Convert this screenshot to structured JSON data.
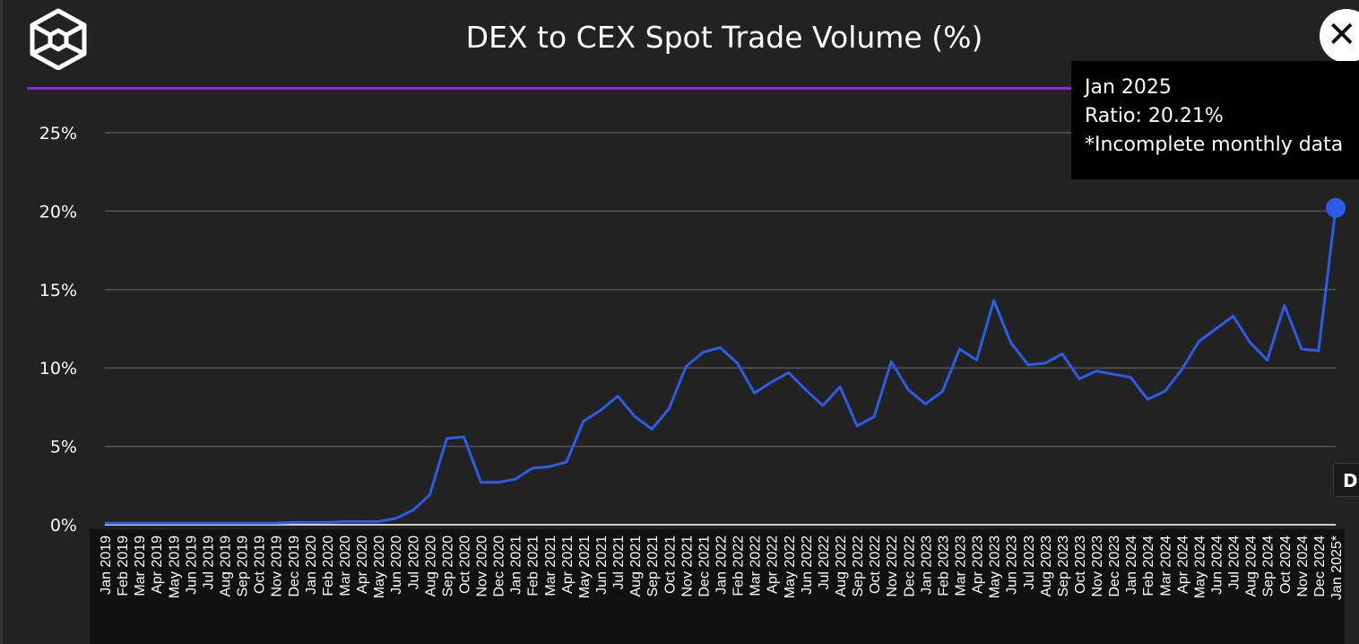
{
  "header": {
    "title": "DEX to CEX Spot Trade Volume (%)",
    "close_icon": "close-icon",
    "logo_icon": "cube-logo-icon"
  },
  "colors": {
    "background": "#222222",
    "line": "#2b5ce6",
    "accent_rule": "#8a2be2",
    "grid": "#555555",
    "tooltip_bg": "#000000"
  },
  "tooltip": {
    "date": "Jan 2025",
    "ratio": "Ratio: 20.21%",
    "note": "*Incomplete monthly data"
  },
  "side_button": {
    "label": "D"
  },
  "chart_data": {
    "type": "line",
    "title": "DEX to CEX Spot Trade Volume (%)",
    "xlabel": "",
    "ylabel": "",
    "ylim": [
      0,
      25
    ],
    "yticks": [
      "0%",
      "5%",
      "10%",
      "15%",
      "20%",
      "25%"
    ],
    "ytick_values": [
      0,
      5,
      10,
      15,
      20,
      25
    ],
    "grid": true,
    "categories": [
      "Jan 2019",
      "Feb 2019",
      "Mar 2019",
      "Apr 2019",
      "May 2019",
      "Jun 2019",
      "Jul 2019",
      "Aug 2019",
      "Sep 2019",
      "Oct 2019",
      "Nov 2019",
      "Dec 2019",
      "Jan 2020",
      "Feb 2020",
      "Mar 2020",
      "Apr 2020",
      "May 2020",
      "Jun 2020",
      "Jul 2020",
      "Aug 2020",
      "Sep 2020",
      "Oct 2020",
      "Nov 2020",
      "Dec 2020",
      "Jan 2021",
      "Feb 2021",
      "Mar 2021",
      "Apr 2021",
      "May 2021",
      "Jun 2021",
      "Jul 2021",
      "Aug 2021",
      "Sep 2021",
      "Oct 2021",
      "Nov 2021",
      "Dec 2021",
      "Jan 2022",
      "Feb 2022",
      "Mar 2022",
      "Apr 2022",
      "May 2022",
      "Jun 2022",
      "Jul 2022",
      "Aug 2022",
      "Sep 2022",
      "Oct 2022",
      "Nov 2022",
      "Dec 2022",
      "Jan 2023",
      "Feb 2023",
      "Mar 2023",
      "Apr 2023",
      "May 2023",
      "Jun 2023",
      "Jul 2023",
      "Aug 2023",
      "Sep 2023",
      "Oct 2023",
      "Nov 2023",
      "Dec 2023",
      "Jan 2024",
      "Feb 2024",
      "Mar 2024",
      "Apr 2024",
      "May 2024",
      "Jun 2024",
      "Jul 2024",
      "Aug 2024",
      "Sep 2024",
      "Oct 2024",
      "Nov 2024",
      "Dec 2024",
      "Jan 2025*"
    ],
    "series": [
      {
        "values": [
          0.1,
          0.1,
          0.1,
          0.1,
          0.1,
          0.1,
          0.1,
          0.1,
          0.1,
          0.1,
          0.1,
          0.15,
          0.15,
          0.15,
          0.2,
          0.2,
          0.2,
          0.4,
          0.9,
          1.9,
          5.5,
          5.6,
          2.7,
          2.7,
          2.9,
          3.6,
          3.7,
          4.0,
          6.6,
          7.3,
          8.2,
          6.9,
          6.1,
          7.4,
          10.1,
          11.0,
          11.3,
          10.3,
          8.4,
          9.1,
          9.7,
          8.6,
          7.6,
          8.8,
          6.3,
          6.9,
          10.4,
          8.6,
          7.7,
          8.5,
          11.2,
          10.5,
          14.3,
          11.6,
          10.2,
          10.3,
          10.9,
          9.3,
          9.8,
          9.6,
          9.4,
          8.0,
          8.5,
          9.9,
          11.7,
          12.5,
          13.3,
          11.6,
          10.5,
          14.0,
          11.2,
          11.1,
          20.21
        ]
      }
    ],
    "highlighted_point": {
      "category": "Jan 2025*",
      "value": 20.21
    }
  }
}
